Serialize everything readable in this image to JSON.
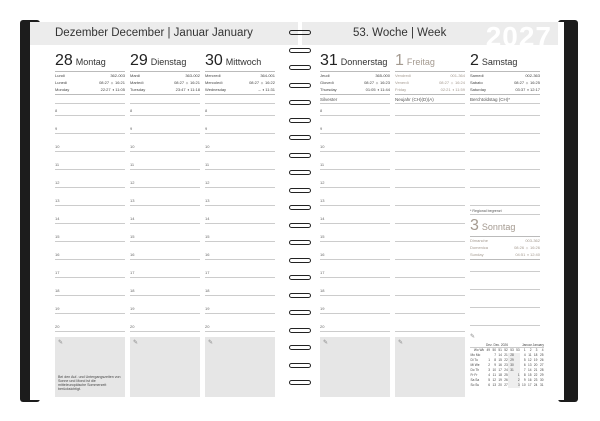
{
  "header": {
    "left": "Dezember December | Januar January",
    "right": "53. Woche | Week",
    "year": "2027"
  },
  "hours": [
    "8",
    "9",
    "10",
    "11",
    "12",
    "13",
    "14",
    "15",
    "16",
    "17",
    "18",
    "19",
    "20"
  ],
  "days": [
    {
      "num": "28",
      "name": "Montag",
      "info": [
        [
          "Lundi",
          "362-003"
        ],
        [
          "Lunedì",
          "08:27 ☼ 16:21"
        ],
        [
          "Monday",
          "22:27 ◑ 11:05"
        ]
      ],
      "note": ""
    },
    {
      "num": "29",
      "name": "Dienstag",
      "info": [
        [
          "Mardi",
          "363-002"
        ],
        [
          "Martedì",
          "08:27 ☼ 16:21"
        ],
        [
          "Tuesday",
          "23:47 ◑ 11:18"
        ]
      ],
      "note": ""
    },
    {
      "num": "30",
      "name": "Mittwoch",
      "info": [
        [
          "Mercredi",
          "364-001"
        ],
        [
          "Mercoledì",
          "08:27 ☼ 16:22"
        ],
        [
          "Wednesday",
          "– ◑ 11:31"
        ]
      ],
      "note": ""
    },
    {
      "num": "31",
      "name": "Donnerstag",
      "info": [
        [
          "Jeudi",
          "365-000"
        ],
        [
          "Giovedì",
          "08:27 ☼ 16:23"
        ],
        [
          "Thursday",
          "01:05 ◑ 11:44"
        ]
      ],
      "note": "Silvester"
    },
    {
      "num": "1",
      "name": "Freitag",
      "holiday": true,
      "info": [
        [
          "Vendredi",
          "001-364"
        ],
        [
          "Venerdì",
          "08:27 ☼ 16:24"
        ],
        [
          "Friday",
          "02:21 ◑ 11:59"
        ]
      ],
      "note": "Neujahr (CH)(D)(A)"
    },
    {
      "num": "2",
      "name": "Samstag",
      "info": [
        [
          "Samedi",
          "002-363"
        ],
        [
          "Sabato",
          "08:27 ☼ 16:25"
        ],
        [
          "Saturday",
          "03:37 ◑ 12:17"
        ]
      ],
      "note": "Berchtoldstag (CH)*"
    }
  ],
  "sunday": {
    "num": "3",
    "name": "Sonntag",
    "info": [
      [
        "Dimanche",
        "003-362"
      ],
      [
        "Domenica",
        "08:26 ☼ 16:26"
      ],
      [
        "Sunday",
        "04:51 ◑ 12:40"
      ]
    ]
  },
  "regional_note": "* Regional begrenzt",
  "footnote": "Bei den Auf- und Untergangszeiten von Sonne und Mond ist die mitteleuropäische Sommerzeit berücksichtigt.",
  "mini_calendar": {
    "title_left": "Dez. Dec. 2026",
    "title_right": "Januar January",
    "header": [
      "Wo Wk",
      "49",
      "50",
      "51",
      "52",
      "53",
      "53",
      "1",
      "2",
      "3",
      "4"
    ],
    "rows": [
      [
        "Mo Mo",
        "",
        "7",
        "14",
        "21",
        "28",
        "",
        "4",
        "11",
        "18",
        "25"
      ],
      [
        "Di Tu",
        "1",
        "8",
        "15",
        "22",
        "29",
        "",
        "5",
        "12",
        "19",
        "26"
      ],
      [
        "Mi We",
        "2",
        "9",
        "16",
        "23",
        "30",
        "",
        "6",
        "13",
        "20",
        "27"
      ],
      [
        "Do Th",
        "3",
        "10",
        "17",
        "24",
        "31",
        "",
        "7",
        "14",
        "21",
        "28"
      ],
      [
        "Fr Fr",
        "4",
        "11",
        "18",
        "25",
        "",
        "1",
        "8",
        "15",
        "22",
        "29"
      ],
      [
        "Sa Sa",
        "5",
        "12",
        "19",
        "26",
        "",
        "2",
        "9",
        "16",
        "23",
        "30"
      ],
      [
        "So Su",
        "6",
        "13",
        "20",
        "27",
        "",
        "3",
        "10",
        "17",
        "24",
        "31"
      ]
    ]
  },
  "colors": {
    "holiday": "#a49a90",
    "cover": "#1c1c1c",
    "band": "#ececec"
  }
}
